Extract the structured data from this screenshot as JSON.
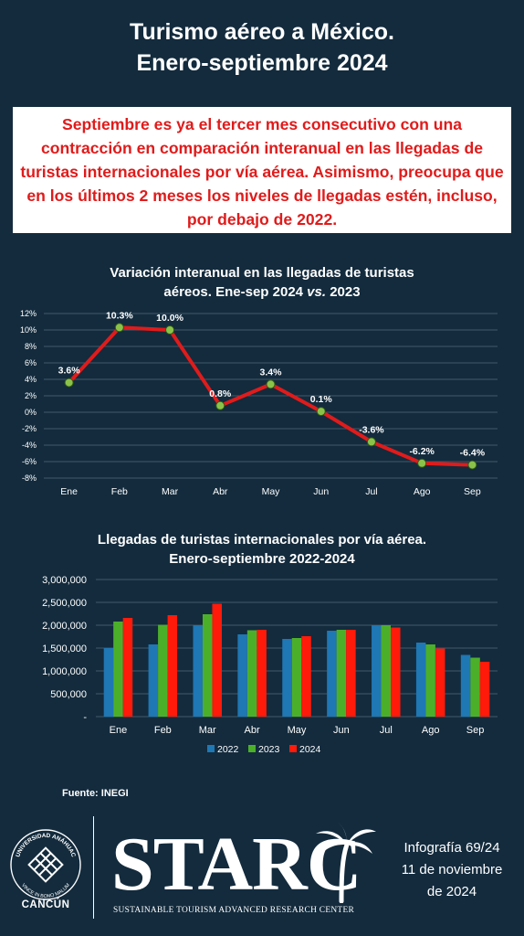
{
  "header": {
    "title_line1": "Turismo aéreo a México.",
    "title_line2": "Enero-septiembre 2024"
  },
  "callout": {
    "text": "Septiembre es ya el tercer mes consecutivo con una contracción en comparación interanual en las llegadas de turistas internacionales por vía aérea. Asimismo, preocupa que en los últimos 2 meses los niveles de llegadas estén, incluso, por debajo de 2022.",
    "color": "#e01b1b"
  },
  "chart_data": [
    {
      "type": "line",
      "title_part1": "Variación interanual en las llegadas de turistas",
      "title_part2": "aéreos. Ene-sep 2024 ",
      "title_italic": "vs.",
      "title_part3": " 2023",
      "categories": [
        "Ene",
        "Feb",
        "Mar",
        "Abr",
        "May",
        "Jun",
        "Jul",
        "Ago",
        "Sep"
      ],
      "values": [
        3.6,
        10.3,
        10.0,
        0.8,
        3.4,
        0.1,
        -3.6,
        -6.2,
        -6.4
      ],
      "data_labels": [
        "3.6%",
        "10.3%",
        "10.0%",
        "0.8%",
        "3.4%",
        "0.1%",
        "-3.6%",
        "-6.2%",
        "-6.4%"
      ],
      "y_ticks": [
        "12%",
        "10%",
        "8%",
        "6%",
        "4%",
        "2%",
        "0%",
        "-2%",
        "-4%",
        "-6%",
        "-8%"
      ],
      "ylim": [
        -8,
        12
      ],
      "grid": true,
      "line_color": "#e01b1b",
      "marker_color": "#8bc34a"
    },
    {
      "type": "bar",
      "title_line1": "Llegadas de turistas internacionales por vía aérea.",
      "title_line2": "Enero-septiembre 2022-2024",
      "categories": [
        "Ene",
        "Feb",
        "Mar",
        "Abr",
        "May",
        "Jun",
        "Jul",
        "Ago",
        "Sep"
      ],
      "series": [
        {
          "name": "2022",
          "color": "#1f77b4",
          "values": [
            1500000,
            1580000,
            2000000,
            1800000,
            1700000,
            1880000,
            2000000,
            1620000,
            1350000
          ]
        },
        {
          "name": "2023",
          "color": "#4caf2a",
          "values": [
            2080000,
            2010000,
            2240000,
            1890000,
            1720000,
            1900000,
            2000000,
            1580000,
            1290000
          ]
        },
        {
          "name": "2024",
          "color": "#ff1a0a",
          "values": [
            2160000,
            2220000,
            2470000,
            1900000,
            1760000,
            1900000,
            1950000,
            1490000,
            1200000
          ]
        }
      ],
      "y_ticks": [
        "3,000,000",
        "2,500,000",
        "2,000,000",
        "1,500,000",
        "1,000,000",
        "500,000",
        "-"
      ],
      "ylim": [
        0,
        3000000
      ],
      "grid": true,
      "legend": "bottom"
    }
  ],
  "footer": {
    "source": "Fuente: INEGI",
    "seal_outer_text": "UNIVERSIDAD ANÁHUAC",
    "seal_inner_text": "VINCE IN BONO MALUM",
    "campus": "CANCÚN",
    "logo_main": "STARC",
    "logo_sub": "SUSTAINABLE TOURISM ADVANCED RESEARCH CENTER",
    "info_line1": "Infografía 69/24",
    "info_line2": "11 de noviembre",
    "info_line3": "de 2024"
  }
}
